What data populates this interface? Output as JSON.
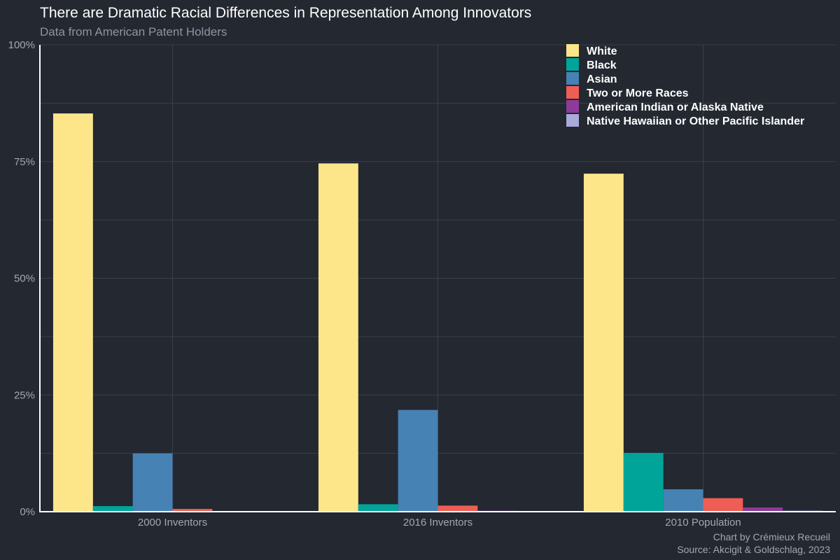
{
  "chart_data": {
    "type": "bar",
    "title": "There are Dramatic Racial Differences in Representation Among Innovators",
    "subtitle": "Data from American Patent Holders",
    "categories": [
      "2000 Inventors",
      "2016 Inventors",
      "2010 Population"
    ],
    "series": [
      {
        "name": "White",
        "color": "#fde68a",
        "values": [
          85.3,
          74.6,
          72.4
        ]
      },
      {
        "name": "Black",
        "color": "#00a499",
        "values": [
          1.2,
          1.6,
          12.6
        ]
      },
      {
        "name": "Asian",
        "color": "#4682b4",
        "values": [
          12.5,
          21.8,
          4.8
        ]
      },
      {
        "name": "Two or More Races",
        "color": "#ee5e55",
        "values": [
          0.6,
          1.3,
          2.9
        ]
      },
      {
        "name": "American Indian or Alaska Native",
        "color": "#8e3a9a",
        "values": [
          0.1,
          0.2,
          0.9
        ]
      },
      {
        "name": "Native Hawaiian or Other Pacific Islander",
        "color": "#a9a9dc",
        "values": [
          0.05,
          0.05,
          0.2
        ]
      }
    ],
    "yticks": [
      "0%",
      "25%",
      "50%",
      "75%",
      "100%"
    ],
    "ylim": [
      0,
      100
    ],
    "grid": true,
    "legend_position": "top-right",
    "caption": {
      "line1": "Chart by Crémieux Recueil",
      "line2": "Source: Akcigit & Goldschlag, 2023"
    }
  }
}
